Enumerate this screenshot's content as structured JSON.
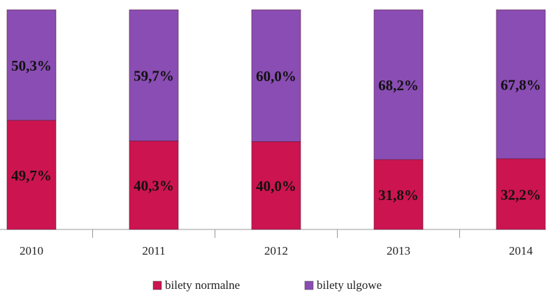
{
  "chart_data": {
    "type": "stacked_bar",
    "categories": [
      "2010",
      "2011",
      "2012",
      "2013",
      "2014"
    ],
    "series": [
      {
        "name": "bilety normalne",
        "color": "#cc1450",
        "values": [
          49.7,
          40.3,
          40.0,
          31.8,
          32.2
        ],
        "value_labels": [
          "49,7%",
          "40,3%",
          "40,0%",
          "31,8%",
          "32,2%"
        ]
      },
      {
        "name": "bilety ulgowe",
        "color": "#8a4db3",
        "values": [
          50.3,
          59.7,
          60.0,
          68.2,
          67.8
        ],
        "value_labels": [
          "50,3%",
          "59,7%",
          "60,0%",
          "68,2%",
          "67,8%"
        ]
      }
    ],
    "legend": "bottom"
  }
}
